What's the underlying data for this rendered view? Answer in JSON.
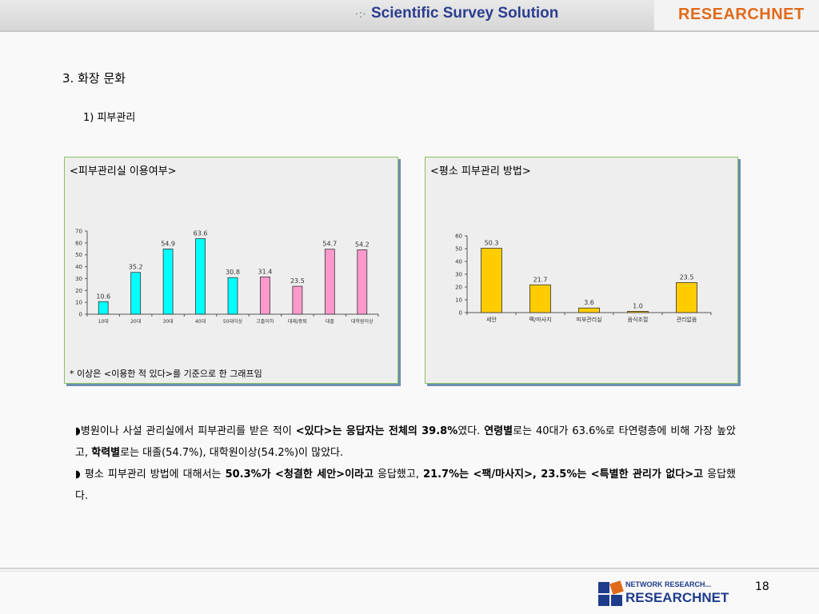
{
  "header": {
    "tagline": "Scientific Survey Solution",
    "brand": "RESEARCHNET"
  },
  "section_title": "3. 화장 문화",
  "subsection_title": "1) 피부관리",
  "chart1_panel": {
    "title": "<피부관리실 이용여부>",
    "note": "* 이상은 <이용한 적 있다>를 기준으로 한 그래프임"
  },
  "chart2_panel": {
    "title": "<평소 피부관리 방법>"
  },
  "chart_data": [
    {
      "type": "bar",
      "title": "<피부관리실 이용여부>",
      "categories": [
        "10대",
        "20대",
        "30대",
        "40대",
        "50대이상",
        "고졸이하",
        "대재/중퇴",
        "대졸",
        "대학원이상"
      ],
      "values": [
        10.6,
        35.2,
        54.9,
        63.6,
        30.8,
        31.4,
        23.5,
        54.7,
        54.2
      ],
      "colors": [
        "#00ffff",
        "#00ffff",
        "#00ffff",
        "#00ffff",
        "#00ffff",
        "#ff99cc",
        "#ff99cc",
        "#ff99cc",
        "#ff99cc"
      ],
      "ylim": [
        0,
        70
      ],
      "yticks": [
        0,
        10,
        20,
        30,
        40,
        50,
        60,
        70
      ],
      "xlabel": "",
      "ylabel": "",
      "grid": false
    },
    {
      "type": "bar",
      "title": "<평소 피부관리 방법>",
      "categories": [
        "세안",
        "팩/마사지",
        "피부관리실",
        "음식조절",
        "관리없음"
      ],
      "values": [
        50.3,
        21.7,
        3.6,
        1.0,
        23.5
      ],
      "value_labels": [
        "50.3",
        "21.7",
        "3.6",
        "1.0",
        "23.5"
      ],
      "colors": [
        "#ffcc00",
        "#ffcc00",
        "#ffcc00",
        "#ffcc00",
        "#ffcc00"
      ],
      "ylim": [
        0,
        60
      ],
      "yticks": [
        0,
        10,
        20,
        30,
        40,
        50,
        60
      ],
      "xlabel": "",
      "ylabel": "",
      "grid": false
    }
  ],
  "body": {
    "p1_bullet": "◗",
    "p1_t1": "병원이나 사설 관리실에서 피부관리를 받은 적이 ",
    "p1_b1": "<있다>는 응답자는 전체의 39.8%",
    "p1_t2": "였다. ",
    "p1_b2": "연령별",
    "p1_t3": "로는 40대가 63.6%로 타연령층에 비해 가장 높았고, ",
    "p1_b3": "학력별",
    "p1_t4": "로는 대졸(54.7%), 대학원이상(54.2%)이 많았다.",
    "p2_bullet": "◗",
    "p2_t1": " 평소 피부관리 방법에 대해서는 ",
    "p2_b1": "50.3%가 <청결한 세안>이라고",
    "p2_t2": " 응답했고, ",
    "p2_b2": "21.7%는 <팩/마사지>, 23.5%는 <특별한 관리가 없다>고",
    "p2_t3": " 응답했다."
  },
  "footer": {
    "logo_top": "NETWORK RESEARCH...",
    "logo_main": "RESEARCHNET",
    "page_number": "18"
  }
}
